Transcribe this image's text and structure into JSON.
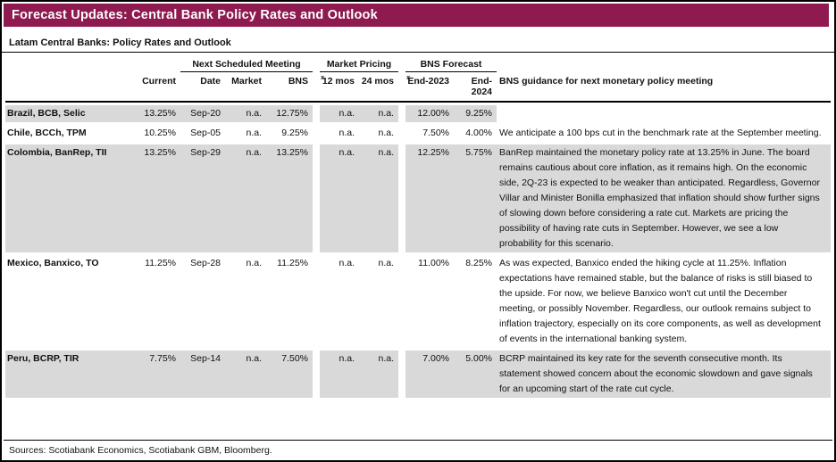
{
  "header": {
    "title": "Forecast Updates: Central Bank Policy Rates and Outlook"
  },
  "subtitle": "Latam Central Banks: Policy Rates and Outlook",
  "colors": {
    "accent": "#8E1A4F",
    "row_shade": "#D9D9D9"
  },
  "table": {
    "groups": {
      "meeting": {
        "label": "Next Scheduled Meeting",
        "footnote": ""
      },
      "pricing": {
        "label": "Market Pricing",
        "footnote": "x"
      },
      "forecast": {
        "label": "BNS Forecast",
        "footnote": "x"
      }
    },
    "columns": {
      "current": "Current",
      "date": "Date",
      "market": "Market",
      "bns": "BNS",
      "m12": "12 mos",
      "m24": "24 mos",
      "end2023": "End-2023",
      "end2024": "End-2024",
      "guidance": "BNS guidance for next monetary policy meeting"
    },
    "rows": [
      {
        "name": "Brazil, BCB, Selic",
        "current": "13.25%",
        "date": "Sep-20",
        "market": "n.a.",
        "bns": "12.75%",
        "m12": "n.a.",
        "m24": "n.a.",
        "end2023": "12.00%",
        "end2024": "9.25%",
        "guidance": ""
      },
      {
        "name": "Chile, BCCh, TPM",
        "current": "10.25%",
        "date": "Sep-05",
        "market": "n.a.",
        "bns": "9.25%",
        "m12": "n.a.",
        "m24": "n.a.",
        "end2023": "7.50%",
        "end2024": "4.00%",
        "guidance": "We anticipate a 100 bps cut in the benchmark rate at the September meeting."
      },
      {
        "name": "Colombia, BanRep, TII",
        "current": "13.25%",
        "date": "Sep-29",
        "market": "n.a.",
        "bns": "13.25%",
        "m12": "n.a.",
        "m24": "n.a.",
        "end2023": "12.25%",
        "end2024": "5.75%",
        "guidance": "BanRep maintained the monetary policy rate at 13.25% in June. The board remains cautious about core inflation, as it remains high. On the economic side, 2Q-23 is expected to be weaker than anticipated. Regardless, Governor Villar and Minister Bonilla emphasized that inflation should show further signs of slowing down before considering a rate cut. Markets are pricing the possibility of having rate cuts in September. However, we see a low probability for this scenario."
      },
      {
        "name": "Mexico, Banxico, TO",
        "current": "11.25%",
        "date": "Sep-28",
        "market": "n.a.",
        "bns": "11.25%",
        "m12": "n.a.",
        "m24": "n.a.",
        "end2023": "11.00%",
        "end2024": "8.25%",
        "guidance": "As was expected, Banxico ended the hiking cycle at 11.25%. Inflation expectations have remained stable, but the balance of risks is still biased to the upside. For now, we believe Banxico won't cut until the December meeting, or possibly November. Regardless, our outlook remains subject to inflation trajectory, especially on its core components, as well as development of events in the international banking system."
      },
      {
        "name": "Peru, BCRP, TIR",
        "current": "7.75%",
        "date": "Sep-14",
        "market": "n.a.",
        "bns": "7.50%",
        "m12": "n.a.",
        "m24": "n.a.",
        "end2023": "7.00%",
        "end2024": "5.00%",
        "guidance": "BCRP maintained its key rate for the seventh consecutive month. Its statement showed concern about the economic slowdown and gave signals for an upcoming start of the rate cut cycle."
      }
    ]
  },
  "footer": {
    "sources": "Sources: Scotiabank Economics, Scotiabank GBM, Bloomberg."
  }
}
